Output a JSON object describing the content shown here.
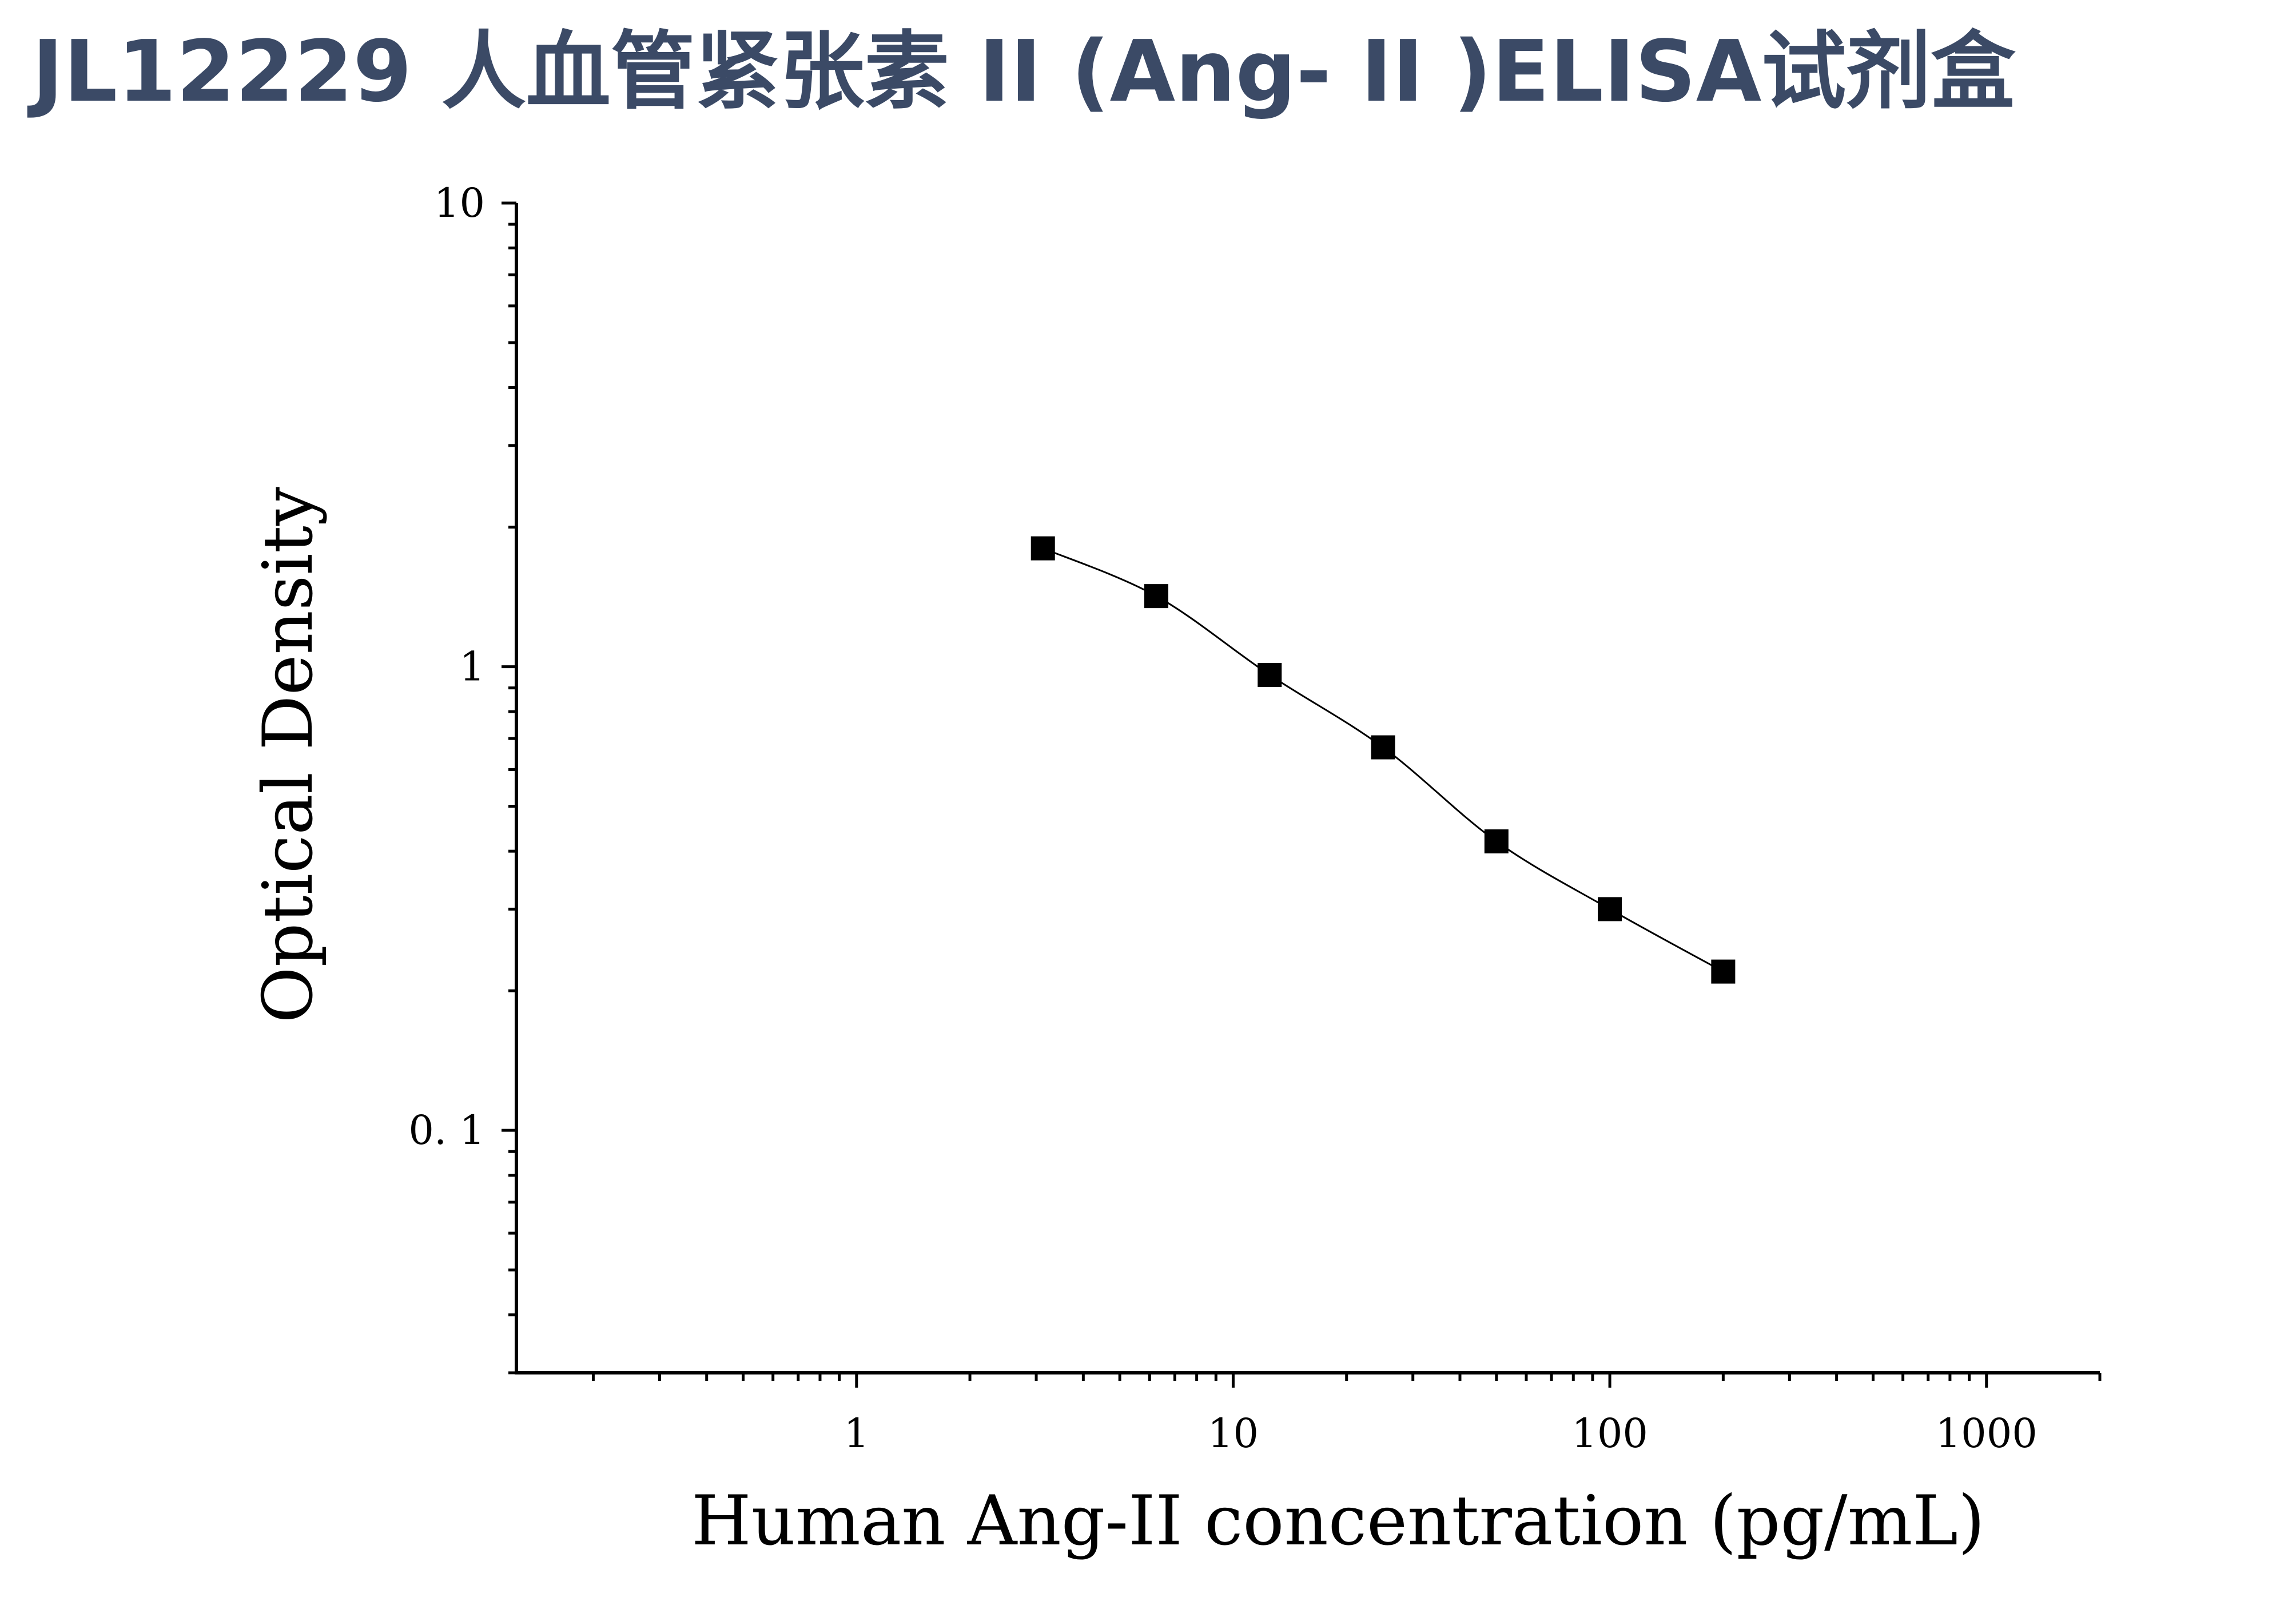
{
  "page": {
    "title": "JL12229 人血管紧张素 II (Ang- II )ELISA试剂盒"
  },
  "chart_data": {
    "type": "scatter",
    "title": "JL12229 人血管紧张素 II (Ang- II )ELISA试剂盒",
    "xlabel": "Human Ang-II concentration (pg/mL)",
    "ylabel": "Optical Density",
    "x_scale": "log",
    "y_scale": "log",
    "xlim": [
      0.125,
      2000
    ],
    "ylim": [
      0.03,
      10
    ],
    "x_ticks": [
      {
        "value": 1,
        "label": "1"
      },
      {
        "value": 10,
        "label": "10"
      },
      {
        "value": 100,
        "label": "100"
      },
      {
        "value": 1000,
        "label": "1000"
      }
    ],
    "y_ticks": [
      {
        "value": 10,
        "label": "10"
      },
      {
        "value": 1,
        "label": "1"
      },
      {
        "value": 0.1,
        "label": "0. 1"
      }
    ],
    "grid": false,
    "series": [
      {
        "marker": "square",
        "color": "#000000",
        "fit_curve": true,
        "x": [
          3.125,
          6.25,
          12.5,
          25,
          50,
          100,
          200
        ],
        "y": [
          1.8,
          1.42,
          0.96,
          0.67,
          0.42,
          0.3,
          0.22
        ]
      }
    ]
  }
}
